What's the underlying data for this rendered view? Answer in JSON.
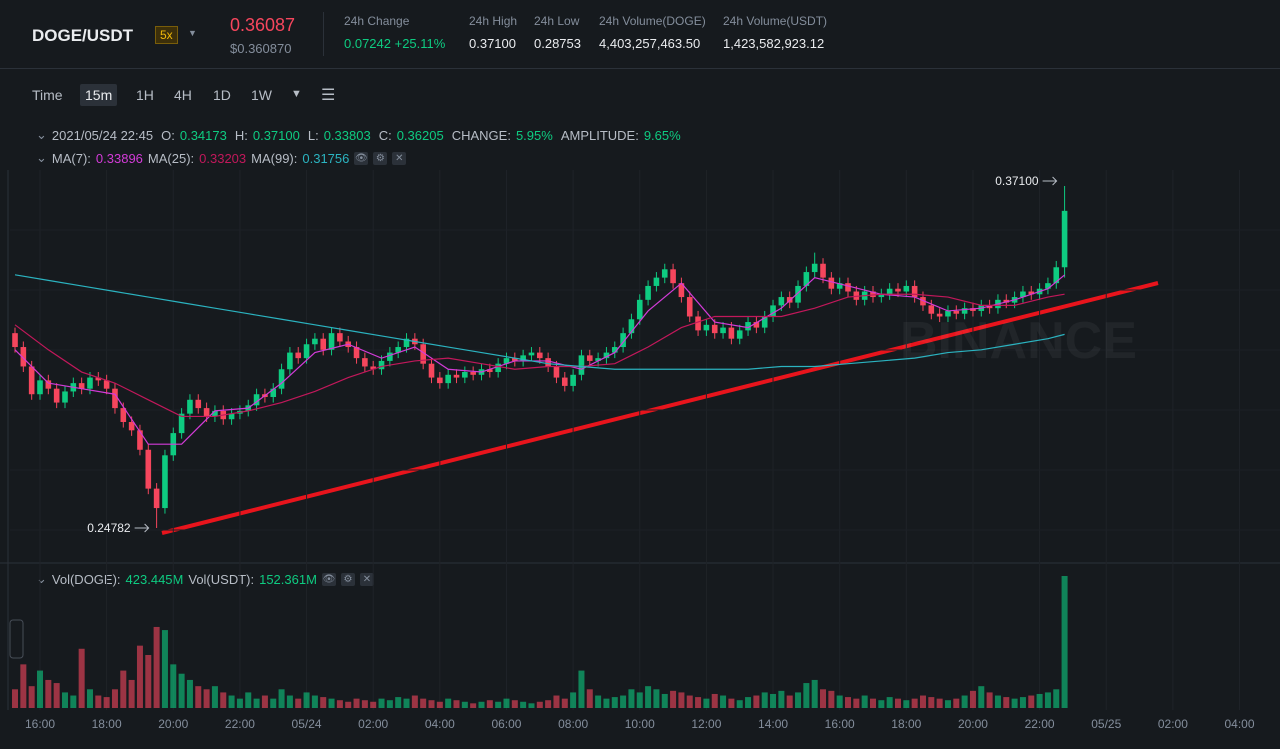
{
  "header": {
    "pair": "DOGE/USDT",
    "leverage": "5x",
    "price": "0.36087",
    "price_usd": "$0.360870",
    "stats": [
      {
        "label": "24h Change",
        "value": "0.07242 +25.11%"
      },
      {
        "label": "24h High",
        "value": "0.37100"
      },
      {
        "label": "24h Low",
        "value": "0.28753"
      },
      {
        "label": "24h Volume(DOGE)",
        "value": "4,403,257,463.50"
      },
      {
        "label": "24h Volume(USDT)",
        "value": "1,423,582,923.12"
      }
    ]
  },
  "toolbar": [
    "Time",
    "15m",
    "1H",
    "4H",
    "1D",
    "1W"
  ],
  "ohlc_info": {
    "date": "2021/05/24 22:45",
    "items": [
      {
        "label": "O:",
        "value": "0.34173"
      },
      {
        "label": "H:",
        "value": "0.37100"
      },
      {
        "label": "L:",
        "value": "0.33803"
      },
      {
        "label": "C:",
        "value": "0.36205"
      },
      {
        "label": "CHANGE:",
        "value": "5.95%"
      },
      {
        "label": "AMPLITUDE:",
        "value": "9.65%"
      }
    ]
  },
  "vol_legend": [
    {
      "label": "Vol(DOGE):",
      "value": "423.445M"
    },
    {
      "label": "Vol(USDT):",
      "value": "152.361M"
    }
  ],
  "chart_data": {
    "type": "candlestick",
    "up_color": "#0ecb81",
    "down_color": "#f6465d",
    "max_label": "0.37100",
    "watermark": "BINANCE",
    "candles": [
      [
        0.318,
        0.32,
        0.311,
        0.313
      ],
      [
        0.313,
        0.315,
        0.304,
        0.306
      ],
      [
        0.306,
        0.308,
        0.294,
        0.296
      ],
      [
        0.296,
        0.303,
        0.294,
        0.301
      ],
      [
        0.301,
        0.303,
        0.296,
        0.298
      ],
      [
        0.298,
        0.3,
        0.291,
        0.293
      ],
      [
        0.293,
        0.299,
        0.291,
        0.297
      ],
      [
        0.297,
        0.302,
        0.295,
        0.3
      ],
      [
        0.3,
        0.302,
        0.296,
        0.298
      ],
      [
        0.298,
        0.304,
        0.296,
        0.302
      ],
      [
        0.302,
        0.304,
        0.299,
        0.301
      ],
      [
        0.301,
        0.303,
        0.296,
        0.298
      ],
      [
        0.298,
        0.3,
        0.289,
        0.291
      ],
      [
        0.291,
        0.293,
        0.284,
        0.286
      ],
      [
        0.286,
        0.288,
        0.281,
        0.283
      ],
      [
        0.283,
        0.285,
        0.274,
        0.276
      ],
      [
        0.276,
        0.278,
        0.26,
        0.262
      ],
      [
        0.262,
        0.264,
        0.24782,
        0.255
      ],
      [
        0.255,
        0.276,
        0.253,
        0.274
      ],
      [
        0.274,
        0.284,
        0.272,
        0.282
      ],
      [
        0.282,
        0.291,
        0.28,
        0.289
      ],
      [
        0.289,
        0.296,
        0.287,
        0.294
      ],
      [
        0.294,
        0.296,
        0.289,
        0.291
      ],
      [
        0.291,
        0.293,
        0.286,
        0.288
      ],
      [
        0.288,
        0.292,
        0.286,
        0.29
      ],
      [
        0.29,
        0.292,
        0.285,
        0.287
      ],
      [
        0.287,
        0.291,
        0.285,
        0.289
      ],
      [
        0.289,
        0.292,
        0.287,
        0.29
      ],
      [
        0.29,
        0.294,
        0.288,
        0.292
      ],
      [
        0.292,
        0.298,
        0.29,
        0.296
      ],
      [
        0.296,
        0.298,
        0.293,
        0.295
      ],
      [
        0.295,
        0.3,
        0.293,
        0.298
      ],
      [
        0.298,
        0.307,
        0.296,
        0.305
      ],
      [
        0.305,
        0.313,
        0.303,
        0.311
      ],
      [
        0.311,
        0.313,
        0.307,
        0.309
      ],
      [
        0.309,
        0.316,
        0.307,
        0.314
      ],
      [
        0.314,
        0.318,
        0.312,
        0.316
      ],
      [
        0.316,
        0.318,
        0.31,
        0.312
      ],
      [
        0.312,
        0.32,
        0.31,
        0.318
      ],
      [
        0.318,
        0.32,
        0.313,
        0.315
      ],
      [
        0.315,
        0.317,
        0.311,
        0.313
      ],
      [
        0.313,
        0.315,
        0.307,
        0.309
      ],
      [
        0.309,
        0.311,
        0.304,
        0.306
      ],
      [
        0.306,
        0.308,
        0.303,
        0.305
      ],
      [
        0.305,
        0.31,
        0.303,
        0.308
      ],
      [
        0.308,
        0.313,
        0.306,
        0.311
      ],
      [
        0.311,
        0.315,
        0.309,
        0.313
      ],
      [
        0.313,
        0.318,
        0.311,
        0.316
      ],
      [
        0.316,
        0.318,
        0.312,
        0.314
      ],
      [
        0.314,
        0.316,
        0.305,
        0.307
      ],
      [
        0.307,
        0.309,
        0.3,
        0.302
      ],
      [
        0.302,
        0.304,
        0.298,
        0.3
      ],
      [
        0.3,
        0.305,
        0.298,
        0.303
      ],
      [
        0.303,
        0.305,
        0.3,
        0.302
      ],
      [
        0.302,
        0.306,
        0.3,
        0.304
      ],
      [
        0.304,
        0.306,
        0.301,
        0.303
      ],
      [
        0.303,
        0.307,
        0.301,
        0.305
      ],
      [
        0.305,
        0.307,
        0.302,
        0.304
      ],
      [
        0.304,
        0.309,
        0.302,
        0.307
      ],
      [
        0.307,
        0.311,
        0.305,
        0.309
      ],
      [
        0.309,
        0.311,
        0.306,
        0.308
      ],
      [
        0.308,
        0.312,
        0.306,
        0.31
      ],
      [
        0.31,
        0.313,
        0.308,
        0.311
      ],
      [
        0.311,
        0.313,
        0.307,
        0.309
      ],
      [
        0.309,
        0.311,
        0.304,
        0.306
      ],
      [
        0.306,
        0.308,
        0.3,
        0.302
      ],
      [
        0.302,
        0.304,
        0.297,
        0.299
      ],
      [
        0.299,
        0.305,
        0.297,
        0.303
      ],
      [
        0.303,
        0.312,
        0.301,
        0.31
      ],
      [
        0.31,
        0.312,
        0.306,
        0.308
      ],
      [
        0.308,
        0.311,
        0.306,
        0.309
      ],
      [
        0.309,
        0.313,
        0.307,
        0.311
      ],
      [
        0.311,
        0.315,
        0.309,
        0.313
      ],
      [
        0.313,
        0.32,
        0.311,
        0.318
      ],
      [
        0.318,
        0.325,
        0.316,
        0.323
      ],
      [
        0.323,
        0.332,
        0.321,
        0.33
      ],
      [
        0.33,
        0.337,
        0.328,
        0.335
      ],
      [
        0.335,
        0.34,
        0.333,
        0.338
      ],
      [
        0.338,
        0.343,
        0.336,
        0.341
      ],
      [
        0.341,
        0.343,
        0.334,
        0.336
      ],
      [
        0.336,
        0.338,
        0.329,
        0.331
      ],
      [
        0.331,
        0.333,
        0.322,
        0.324
      ],
      [
        0.324,
        0.326,
        0.317,
        0.319
      ],
      [
        0.319,
        0.323,
        0.317,
        0.321
      ],
      [
        0.321,
        0.323,
        0.316,
        0.318
      ],
      [
        0.318,
        0.322,
        0.316,
        0.32
      ],
      [
        0.32,
        0.322,
        0.314,
        0.316
      ],
      [
        0.316,
        0.321,
        0.314,
        0.319
      ],
      [
        0.319,
        0.324,
        0.317,
        0.322
      ],
      [
        0.322,
        0.324,
        0.318,
        0.32
      ],
      [
        0.32,
        0.326,
        0.318,
        0.324
      ],
      [
        0.324,
        0.33,
        0.322,
        0.328
      ],
      [
        0.328,
        0.333,
        0.326,
        0.331
      ],
      [
        0.331,
        0.333,
        0.327,
        0.329
      ],
      [
        0.329,
        0.337,
        0.327,
        0.335
      ],
      [
        0.335,
        0.342,
        0.333,
        0.34
      ],
      [
        0.34,
        0.347,
        0.338,
        0.343
      ],
      [
        0.343,
        0.345,
        0.336,
        0.338
      ],
      [
        0.338,
        0.34,
        0.332,
        0.334
      ],
      [
        0.334,
        0.338,
        0.332,
        0.336
      ],
      [
        0.336,
        0.338,
        0.331,
        0.333
      ],
      [
        0.333,
        0.335,
        0.328,
        0.33
      ],
      [
        0.33,
        0.335,
        0.328,
        0.333
      ],
      [
        0.333,
        0.335,
        0.329,
        0.331
      ],
      [
        0.331,
        0.334,
        0.329,
        0.332
      ],
      [
        0.332,
        0.336,
        0.33,
        0.334
      ],
      [
        0.334,
        0.336,
        0.331,
        0.333
      ],
      [
        0.333,
        0.337,
        0.331,
        0.335
      ],
      [
        0.335,
        0.337,
        0.329,
        0.331
      ],
      [
        0.331,
        0.333,
        0.326,
        0.328
      ],
      [
        0.328,
        0.33,
        0.323,
        0.325
      ],
      [
        0.325,
        0.327,
        0.322,
        0.324
      ],
      [
        0.324,
        0.328,
        0.322,
        0.326
      ],
      [
        0.326,
        0.328,
        0.323,
        0.325
      ],
      [
        0.325,
        0.329,
        0.323,
        0.327
      ],
      [
        0.327,
        0.329,
        0.324,
        0.326
      ],
      [
        0.326,
        0.33,
        0.324,
        0.328
      ],
      [
        0.328,
        0.33,
        0.325,
        0.327
      ],
      [
        0.327,
        0.332,
        0.325,
        0.33
      ],
      [
        0.33,
        0.332,
        0.327,
        0.329
      ],
      [
        0.329,
        0.333,
        0.327,
        0.331
      ],
      [
        0.331,
        0.335,
        0.329,
        0.333
      ],
      [
        0.333,
        0.335,
        0.33,
        0.332
      ],
      [
        0.332,
        0.336,
        0.33,
        0.334
      ],
      [
        0.334,
        0.338,
        0.332,
        0.336
      ],
      [
        0.336,
        0.344,
        0.334,
        0.34173
      ],
      [
        0.34173,
        0.371,
        0.33803,
        0.36205
      ]
    ],
    "volumes": [
      60,
      140,
      70,
      120,
      90,
      80,
      50,
      40,
      190,
      60,
      40,
      35,
      60,
      120,
      90,
      200,
      170,
      260,
      250,
      140,
      110,
      90,
      70,
      60,
      70,
      50,
      40,
      30,
      50,
      30,
      40,
      30,
      60,
      40,
      30,
      50,
      40,
      35,
      30,
      25,
      20,
      30,
      25,
      20,
      30,
      25,
      35,
      30,
      40,
      30,
      25,
      20,
      30,
      25,
      20,
      15,
      20,
      25,
      20,
      30,
      25,
      20,
      15,
      20,
      25,
      40,
      30,
      50,
      120,
      60,
      40,
      30,
      35,
      40,
      60,
      50,
      70,
      60,
      45,
      55,
      50,
      40,
      35,
      30,
      45,
      40,
      30,
      25,
      35,
      40,
      50,
      45,
      55,
      40,
      50,
      80,
      90,
      60,
      55,
      40,
      35,
      30,
      40,
      30,
      25,
      35,
      30,
      25,
      30,
      40,
      35,
      30,
      25,
      30,
      40,
      55,
      70,
      50,
      40,
      35,
      30,
      35,
      40,
      45,
      50,
      60,
      423.445
    ],
    "series": [
      {
        "name": "MA(7):",
        "value_label": "0.33896",
        "color": "#d33bd8",
        "x": [
          0,
          4,
          8,
          12,
          16,
          20,
          24,
          28,
          32,
          36,
          40,
          44,
          48,
          52,
          56,
          60,
          64,
          68,
          72,
          76,
          80,
          84,
          88,
          92,
          96,
          100,
          104,
          108,
          112,
          116,
          120,
          124,
          126
        ],
        "values": [
          0.312,
          0.3,
          0.298,
          0.296,
          0.278,
          0.278,
          0.29,
          0.291,
          0.3,
          0.311,
          0.314,
          0.309,
          0.313,
          0.305,
          0.304,
          0.308,
          0.308,
          0.305,
          0.311,
          0.326,
          0.336,
          0.322,
          0.32,
          0.327,
          0.338,
          0.335,
          0.332,
          0.331,
          0.326,
          0.327,
          0.33,
          0.334,
          0.33896
        ]
      },
      {
        "name": "MA(25):",
        "value_label": "0.33203",
        "color": "#c2185b",
        "x": [
          0,
          4,
          8,
          12,
          16,
          20,
          24,
          28,
          32,
          36,
          40,
          44,
          48,
          52,
          56,
          60,
          64,
          68,
          72,
          76,
          80,
          84,
          88,
          92,
          96,
          100,
          104,
          108,
          112,
          116,
          120,
          124,
          126
        ],
        "values": [
          0.321,
          0.312,
          0.304,
          0.3,
          0.294,
          0.288,
          0.288,
          0.29,
          0.293,
          0.297,
          0.302,
          0.306,
          0.308,
          0.309,
          0.307,
          0.305,
          0.306,
          0.306,
          0.307,
          0.313,
          0.32,
          0.324,
          0.324,
          0.324,
          0.327,
          0.331,
          0.332,
          0.332,
          0.331,
          0.328,
          0.328,
          0.331,
          0.33203
        ]
      },
      {
        "name": "MA(99):",
        "value_label": "0.31756",
        "color": "#2bb3c0",
        "x": [
          0,
          4,
          8,
          12,
          16,
          20,
          24,
          28,
          32,
          36,
          40,
          44,
          48,
          52,
          56,
          60,
          64,
          68,
          72,
          76,
          80,
          84,
          88,
          92,
          96,
          100,
          104,
          108,
          112,
          116,
          120,
          124,
          126
        ],
        "values": [
          0.339,
          0.337,
          0.335,
          0.333,
          0.331,
          0.329,
          0.327,
          0.325,
          0.323,
          0.321,
          0.319,
          0.317,
          0.315,
          0.313,
          0.311,
          0.309,
          0.307,
          0.306,
          0.305,
          0.305,
          0.305,
          0.305,
          0.305,
          0.306,
          0.306,
          0.307,
          0.308,
          0.309,
          0.311,
          0.312,
          0.314,
          0.316,
          0.31756
        ]
      }
    ],
    "x_ticks": [
      "16:00",
      "18:00",
      "20:00",
      "22:00",
      "05/24",
      "02:00",
      "04:00",
      "06:00",
      "08:00",
      "10:00",
      "12:00",
      "14:00",
      "16:00",
      "18:00",
      "20:00",
      "22:00",
      "05/25",
      "02:00",
      "04:00"
    ]
  }
}
